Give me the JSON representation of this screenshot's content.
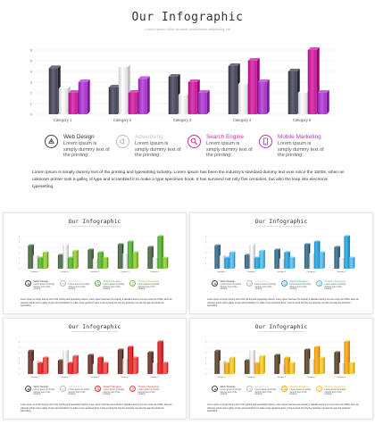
{
  "page": {
    "title": "Our Infographic",
    "subtitle": "Lorem ipsum dolor sit amet consectetur adipiscing elit",
    "body": "Lorem Ipsum is simply dummy text of the printing and typesetting industry. Lorem Ipsum has been the industry's standard dummy text ever since the 1500s, when an unknown printer took a galley of type and scrambled it to make a type specimen book. It has survived not only five centuries, but also the leap into electronic typesetting."
  },
  "legend": [
    {
      "title": "Web Design",
      "desc": "Lorem ipsum is simply dummy text of the printing",
      "icon": "web-design-icon"
    },
    {
      "title": "Advertising",
      "desc": "Lorem ipsum is simply dummy text of the printing",
      "icon": "advertising-icon"
    },
    {
      "title": "Search Engine",
      "desc": "Lorem ipsum is simply dummy text of the printing",
      "icon": "search-icon"
    },
    {
      "title": "Mobile Marketing",
      "desc": "Lorem ipsum is simply dummy text of the printing",
      "icon": "mobile-icon"
    }
  ],
  "themes": {
    "main": {
      "c1": "#4b4c5c",
      "c2": "#e6e6e6",
      "c3": "#c5269c",
      "c4": "#a83ec8",
      "title2": "#c8c8c8",
      "title3": "#c830a8",
      "title4": "#a83ec8"
    },
    "green": {
      "c1": "#4f6b4a",
      "c2": "#e6e6e6",
      "c3": "#5cae3a",
      "c4": "#8cc63f",
      "title2": "#c8c8c8",
      "title3": "#5cae3a",
      "title4": "#8cc63f"
    },
    "blue": {
      "c1": "#3f6c86",
      "c2": "#e6e6e6",
      "c3": "#2f9fd4",
      "c4": "#5bb6e2",
      "title2": "#c8c8c8",
      "title3": "#2f9fd4",
      "title4": "#5bb6e2"
    },
    "red": {
      "c1": "#6b3a32",
      "c2": "#e6e6e6",
      "c3": "#d62a2a",
      "c4": "#ee4a4a",
      "title2": "#c8c8c8",
      "title3": "#d62a2a",
      "title4": "#ee4a4a"
    },
    "gold": {
      "c1": "#5e4a34",
      "c2": "#e6e6e6",
      "c3": "#f0a31a",
      "c4": "#f4c431",
      "title2": "#c8c8c8",
      "title3": "#f0a31a",
      "title4": "#f4c431"
    }
  },
  "chart_data": {
    "type": "bar",
    "categories": [
      "Category 1",
      "Category 2",
      "Category 3",
      "Category 4",
      "Category 5"
    ],
    "series": [
      {
        "values": [
          4.3,
          2.5,
          3.5,
          4.5,
          4.0
        ]
      },
      {
        "values": [
          2.4,
          4.4,
          1.8,
          2.8,
          2.0
        ]
      },
      {
        "values": [
          2.0,
          2.0,
          3.0,
          5.0,
          6.0
        ]
      },
      {
        "values": [
          3.0,
          3.3,
          2.0,
          3.0,
          2.0
        ]
      }
    ],
    "ylim": [
      0,
      6
    ],
    "yticks": [
      0,
      1,
      2,
      3,
      4,
      5,
      6
    ],
    "grid": true,
    "title": "",
    "xlabel": "",
    "ylabel": ""
  }
}
